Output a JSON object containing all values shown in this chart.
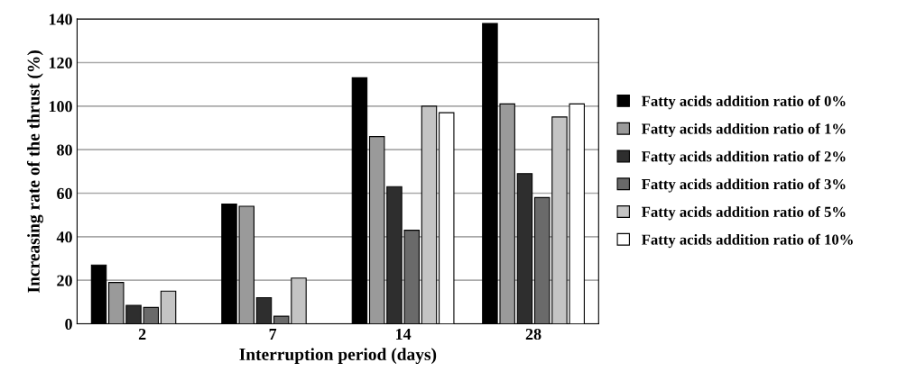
{
  "chart_data": {
    "type": "bar",
    "xlabel": "Interruption period (days)",
    "ylabel": "Increasing rate of the thrust (%)",
    "categories": [
      "2",
      "7",
      "14",
      "28"
    ],
    "series": [
      {
        "name": "Fatty acids addition ratio of 0%",
        "color": "#000000",
        "values": [
          27,
          55,
          113,
          138
        ]
      },
      {
        "name": "Fatty acids addition ratio of 1%",
        "color": "#9a9a9a",
        "values": [
          19,
          54,
          86,
          101
        ]
      },
      {
        "name": "Fatty acids addition ratio of 2%",
        "color": "#2e2e2e",
        "values": [
          8.5,
          12,
          63,
          69
        ]
      },
      {
        "name": "Fatty acids addition ratio of 3%",
        "color": "#6a6a6a",
        "values": [
          7.5,
          3.5,
          43,
          58
        ]
      },
      {
        "name": "Fatty acids addition ratio of 5%",
        "color": "#c4c4c4",
        "values": [
          15,
          21,
          100,
          95
        ]
      },
      {
        "name": "Fatty acids addition ratio of 10%",
        "color": "#ffffff",
        "values": [
          null,
          null,
          97,
          101
        ]
      }
    ],
    "ylim": [
      0,
      140
    ],
    "yticks": [
      0,
      20,
      40,
      60,
      80,
      100,
      120,
      140
    ],
    "grid": "y",
    "legend": "right"
  }
}
